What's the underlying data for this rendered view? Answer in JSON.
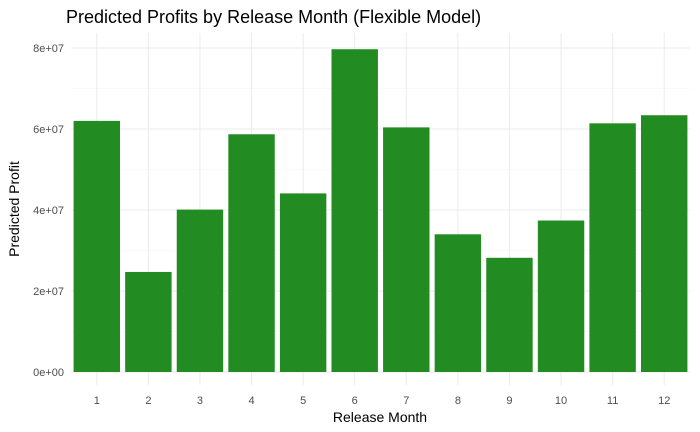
{
  "chart_data": {
    "type": "bar",
    "title": "Predicted Profits by Release Month (Flexible Model)",
    "xlabel": "Release Month",
    "ylabel": "Predicted Profit",
    "categories": [
      "1",
      "2",
      "3",
      "4",
      "5",
      "6",
      "7",
      "8",
      "9",
      "10",
      "11",
      "12"
    ],
    "values": [
      62000000,
      24700000,
      40100000,
      58700000,
      44100000,
      79700000,
      60400000,
      34000000,
      28200000,
      37400000,
      61400000,
      63400000
    ],
    "ylim": [
      0,
      83000000
    ],
    "yticks": [
      0,
      20000000,
      40000000,
      60000000,
      80000000
    ],
    "ytick_labels": [
      "0e+00",
      "2e+07",
      "4e+07",
      "6e+07",
      "8e+07"
    ],
    "grid": true,
    "bar_color": "#228B22"
  }
}
